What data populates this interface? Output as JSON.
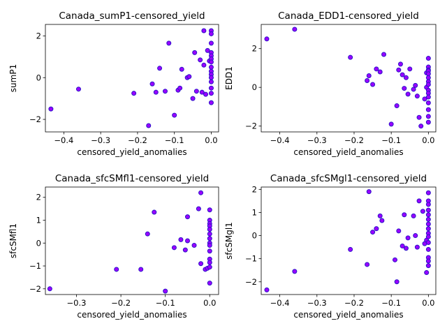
{
  "chart_data": [
    {
      "type": "scatter",
      "title": "Canada_sumP1-censored_yield",
      "xlabel": "censored_yield_anomalies",
      "ylabel": "sumP1",
      "xlim": [
        -0.45,
        0.02
      ],
      "ylim": [
        -2.6,
        2.55
      ],
      "xticks": [
        -0.4,
        -0.3,
        -0.2,
        -0.1,
        0.0
      ],
      "xtick_labels": [
        "−0.4",
        "−0.3",
        "−0.2",
        "−0.1",
        "0.0"
      ],
      "yticks": [
        -2,
        0,
        2
      ],
      "ytick_labels": [
        "−2",
        "0",
        "2"
      ],
      "grid": false,
      "x": [
        -0.435,
        -0.36,
        -0.21,
        -0.17,
        -0.16,
        -0.15,
        -0.14,
        -0.125,
        -0.115,
        -0.1,
        -0.09,
        -0.085,
        -0.08,
        -0.065,
        -0.06,
        -0.05,
        -0.045,
        -0.04,
        -0.03,
        -0.025,
        -0.02,
        -0.02,
        -0.015,
        -0.01,
        -0.005,
        0.0,
        0.0,
        0.0,
        0.0,
        0.0,
        0.0,
        0.0,
        0.0,
        0.0,
        0.0,
        0.0,
        0.0,
        0.0,
        0.0,
        0.0
      ],
      "y": [
        -1.5,
        -0.55,
        -0.75,
        -2.3,
        -0.3,
        -0.7,
        0.45,
        -0.65,
        1.65,
        -1.8,
        -0.6,
        -0.5,
        0.4,
        0.0,
        0.05,
        -1.0,
        1.2,
        -0.65,
        0.85,
        -0.7,
        0.6,
        2.25,
        -0.8,
        1.3,
        0.8,
        2.25,
        2.1,
        1.65,
        1.2,
        1.05,
        0.9,
        0.75,
        0.5,
        0.3,
        0.15,
        0.0,
        -0.2,
        -0.5,
        -0.75,
        -1.2
      ]
    },
    {
      "type": "scatter",
      "title": "Canada_EDD1-censored_yield",
      "xlabel": "censored_yield_anomalies",
      "ylabel": "EDD1",
      "xlim": [
        -0.45,
        0.02
      ],
      "ylim": [
        -2.3,
        3.25
      ],
      "xticks": [
        -0.4,
        -0.3,
        -0.2,
        -0.1,
        0.0
      ],
      "xtick_labels": [
        "−0.4",
        "−0.3",
        "−0.2",
        "−0.1",
        "0.0"
      ],
      "yticks": [
        -2,
        0,
        2
      ],
      "ytick_labels": [
        "−2",
        "0",
        "2"
      ],
      "grid": false,
      "x": [
        -0.435,
        -0.36,
        -0.21,
        -0.165,
        -0.16,
        -0.15,
        -0.14,
        -0.13,
        -0.12,
        -0.1,
        -0.085,
        -0.08,
        -0.075,
        -0.07,
        -0.065,
        -0.06,
        -0.055,
        -0.05,
        -0.04,
        -0.035,
        -0.03,
        -0.025,
        -0.02,
        -0.01,
        -0.005,
        -0.005,
        0.0,
        0.0,
        0.0,
        0.0,
        0.0,
        0.0,
        0.0,
        0.0,
        0.0,
        0.0,
        0.0,
        0.0,
        0.0,
        0.0,
        0.0
      ],
      "y": [
        2.5,
        3.0,
        1.55,
        0.35,
        0.6,
        0.15,
        0.95,
        0.8,
        1.7,
        -1.9,
        -0.95,
        0.9,
        1.2,
        0.65,
        -0.05,
        0.5,
        -0.35,
        0.95,
        -0.1,
        0.1,
        -0.45,
        -1.55,
        -2.0,
        -0.6,
        0.0,
        0.75,
        1.5,
        1.05,
        0.9,
        0.85,
        0.7,
        0.5,
        0.3,
        0.15,
        -0.15,
        -0.3,
        -0.5,
        -0.8,
        -1.15,
        -1.5,
        -1.8
      ]
    },
    {
      "type": "scatter",
      "title": "Canada_sfcSMfl1-censored_yield",
      "xlabel": "censored_yield_anomalies",
      "ylabel": "sfcSMfl1",
      "xlim": [
        -0.37,
        0.02
      ],
      "ylim": [
        -2.25,
        2.45
      ],
      "xticks": [
        -0.3,
        -0.2,
        -0.1,
        0.0
      ],
      "xtick_labels": [
        "−0.3",
        "−0.2",
        "−0.1",
        "0.0"
      ],
      "yticks": [
        -2,
        -1,
        0,
        1,
        2
      ],
      "ytick_labels": [
        "−2",
        "−1",
        "0",
        "1",
        "2"
      ],
      "grid": false,
      "x": [
        -0.36,
        -0.21,
        -0.155,
        -0.14,
        -0.125,
        -0.1,
        -0.08,
        -0.065,
        -0.055,
        -0.05,
        -0.05,
        -0.035,
        -0.025,
        -0.02,
        -0.02,
        -0.01,
        -0.005,
        0.0,
        0.0,
        0.0,
        0.0,
        0.0,
        0.0,
        0.0,
        0.0,
        0.0,
        0.0,
        0.0,
        0.0,
        0.0,
        0.0
      ],
      "y": [
        -2.0,
        -1.15,
        -1.15,
        0.4,
        1.35,
        -2.1,
        -0.2,
        0.15,
        -0.3,
        1.15,
        0.1,
        -0.1,
        1.5,
        -0.9,
        2.2,
        -1.15,
        -1.1,
        1.45,
        1.0,
        0.85,
        0.75,
        0.6,
        0.4,
        0.2,
        0.0,
        -0.1,
        -0.35,
        -0.7,
        -0.85,
        -1.05,
        -1.75
      ]
    },
    {
      "type": "scatter",
      "title": "Canada_sfcSMgl1-censored_yield",
      "xlabel": "censored_yield_anomalies",
      "ylabel": "sfcSMgl1",
      "xlim": [
        -0.45,
        0.02
      ],
      "ylim": [
        -2.55,
        2.1
      ],
      "xticks": [
        -0.4,
        -0.3,
        -0.2,
        -0.1,
        0.0
      ],
      "xtick_labels": [
        "−0.4",
        "−0.3",
        "−0.2",
        "−0.1",
        "0.0"
      ],
      "yticks": [
        -2,
        -1,
        0,
        1,
        2
      ],
      "ytick_labels": [
        "−2",
        "−1",
        "0",
        "1",
        "2"
      ],
      "grid": false,
      "x": [
        -0.435,
        -0.36,
        -0.21,
        -0.165,
        -0.16,
        -0.15,
        -0.14,
        -0.13,
        -0.125,
        -0.09,
        -0.085,
        -0.08,
        -0.07,
        -0.065,
        -0.06,
        -0.055,
        -0.04,
        -0.035,
        -0.03,
        -0.025,
        -0.015,
        -0.01,
        -0.005,
        -0.005,
        0.0,
        0.0,
        0.0,
        0.0,
        0.0,
        0.0,
        0.0,
        0.0,
        0.0,
        0.0,
        0.0,
        0.0,
        0.0,
        0.0,
        0.0
      ],
      "y": [
        -2.35,
        -1.55,
        -0.6,
        -1.25,
        1.9,
        0.15,
        0.3,
        0.85,
        0.65,
        -1.05,
        -2.0,
        0.2,
        -0.45,
        0.9,
        -0.55,
        -0.1,
        0.85,
        0.0,
        -0.5,
        1.5,
        1.05,
        -0.35,
        -1.6,
        -0.2,
        1.85,
        1.5,
        1.35,
        1.1,
        0.9,
        0.7,
        0.5,
        0.3,
        0.1,
        -0.05,
        -0.3,
        -0.6,
        -0.95,
        -1.1,
        -1.3
      ]
    }
  ],
  "style": {
    "marker_fill": "#9a00ff",
    "marker_edge": "#2b16c7",
    "axis_color": "#000000",
    "background": "#ffffff"
  }
}
